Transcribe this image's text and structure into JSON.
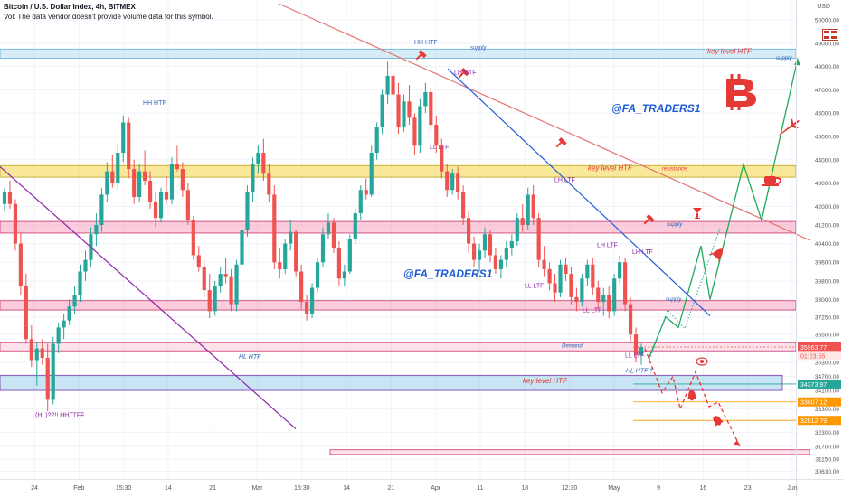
{
  "header": {
    "title": "Bitcoin / U.S. Dollar Index, 4h, BITMEX",
    "vol_note": "Vol: The data vendor doesn't provide volume data for this symbol."
  },
  "currency": "USD",
  "colors": {
    "up": "#26a69a",
    "down": "#ef5350",
    "supply": "#4da8da",
    "key_level": "#f5d547",
    "pink_zone": "#f48fb1",
    "green_path": "#1faa59",
    "red_path": "#e53935",
    "blue_trend": "#1e5bd8",
    "purple_trend": "#8e24aa",
    "pink_trend": "#e57373"
  },
  "icons": [
    "bitcoin-icon",
    "airplane-icon",
    "rocket-icon",
    "coffee-cup-icon",
    "hammer-icon",
    "eye-icon",
    "alarm-bell-icon",
    "flag-icon"
  ],
  "chart_data": {
    "type": "candlestick",
    "title": "Bitcoin / U.S. Dollar Index, 4h, BITMEX",
    "ylim": [
      30300,
      50700
    ],
    "y_ticks": [
      "50000.00",
      "49000.00",
      "48000.00",
      "47000.00",
      "46000.00",
      "45000.00",
      "44000.00",
      "43000.00",
      "42000.00",
      "41200.00",
      "40400.00",
      "39600.00",
      "38800.00",
      "38000.00",
      "37250.00",
      "36500.00",
      "35300.00",
      "34700.00",
      "34100.00",
      "33300.00",
      "32300.00",
      "31700.00",
      "31150.00",
      "30630.00"
    ],
    "x_ticks": [
      "24",
      "Feb",
      "15:30",
      "14",
      "21",
      "Mar",
      "15:30",
      "14",
      "21",
      "Apr",
      "11",
      "18",
      "12:30",
      "May",
      "9",
      "16",
      "23",
      "Jun"
    ],
    "price_labels": [
      {
        "text": "35963.77",
        "value": 35963.77,
        "color": "#ef5350"
      },
      {
        "text": "01:23:55",
        "value": 35600,
        "color": "#ef5350"
      },
      {
        "text": "34373.97",
        "value": 34373.97,
        "color": "#26a69a"
      },
      {
        "text": "33607.12",
        "value": 33607.12,
        "color": "#ff9800"
      },
      {
        "text": "32812.79",
        "value": 32812.79,
        "color": "#ff9800"
      }
    ],
    "zones": [
      {
        "kind": "supply",
        "low": 48350,
        "high": 48750,
        "x_start": 0,
        "x_end": 880
      },
      {
        "kind": "key_level",
        "low": 43250,
        "high": 43750,
        "x_start": 0,
        "x_end": 880
      },
      {
        "kind": "supply_pink",
        "low": 40850,
        "high": 41350,
        "x_start": 0,
        "x_end": 880
      },
      {
        "kind": "supply_pink",
        "low": 37550,
        "high": 37950,
        "x_start": 0,
        "x_end": 880
      },
      {
        "kind": "demand",
        "low": 35800,
        "high": 36150,
        "x_start": 0,
        "x_end": 880
      },
      {
        "kind": "key_level_blue",
        "low": 34100,
        "high": 34750,
        "x_start": 0,
        "x_end": 865
      },
      {
        "kind": "target",
        "low": 31350,
        "high": 31550,
        "x_start": 365,
        "x_end": 895
      }
    ],
    "annotations": [
      {
        "text": "HH HTF",
        "x": 458,
        "value": 48950,
        "color": "#2c5fb5",
        "size": 7
      },
      {
        "text": "supply",
        "x": 520,
        "value": 48750,
        "color": "#2c5fb5",
        "size": 6,
        "italic": true
      },
      {
        "text": "key level HTF",
        "x": 782,
        "value": 48550,
        "color": "#e53935",
        "size": 8,
        "italic": true
      },
      {
        "text": "supply",
        "x": 858,
        "value": 48300,
        "color": "#2c5fb5",
        "size": 6,
        "italic": true
      },
      {
        "text": "LH HTF",
        "x": 502,
        "value": 47650,
        "color": "#8e24aa",
        "size": 7
      },
      {
        "text": "HH HTF",
        "x": 158,
        "value": 46350,
        "color": "#2c5fb5",
        "size": 7
      },
      {
        "text": "@FA_TRADERS1",
        "x": 676,
        "value": 46050,
        "color": "#1e5bd8",
        "size": 12,
        "italic": true,
        "bold": true
      },
      {
        "text": "LL LTF",
        "x": 475,
        "value": 44450,
        "color": "#8e24aa",
        "size": 7
      },
      {
        "text": "key level HTF",
        "x": 650,
        "value": 43550,
        "color": "#e53935",
        "size": 8,
        "italic": true
      },
      {
        "text": "resistance",
        "x": 732,
        "value": 43550,
        "color": "#e53935",
        "size": 6,
        "italic": true
      },
      {
        "text": "LH LTF",
        "x": 613,
        "value": 43050,
        "color": "#8e24aa",
        "size": 7
      },
      {
        "text": "supply",
        "x": 737,
        "value": 41150,
        "color": "#2c5fb5",
        "size": 6,
        "italic": true
      },
      {
        "text": "LH LTF",
        "x": 660,
        "value": 40250,
        "color": "#8e24aa",
        "size": 7
      },
      {
        "text": "LH LTF",
        "x": 699,
        "value": 39950,
        "color": "#8e24aa",
        "size": 7
      },
      {
        "text": "@FA_TRADERS1",
        "x": 446,
        "value": 38950,
        "color": "#1e5bd8",
        "size": 12,
        "italic": true,
        "bold": true
      },
      {
        "text": "LL LTF",
        "x": 580,
        "value": 38500,
        "color": "#8e24aa",
        "size": 7
      },
      {
        "text": "supply",
        "x": 736,
        "value": 37950,
        "color": "#2c5fb5",
        "size": 6,
        "italic": true
      },
      {
        "text": "LL LTF",
        "x": 644,
        "value": 37450,
        "color": "#8e24aa",
        "size": 7
      },
      {
        "text": "Demand",
        "x": 621,
        "value": 35950,
        "color": "#2c5fb5",
        "size": 6,
        "italic": true
      },
      {
        "text": "LL LTF",
        "x": 691,
        "value": 35520,
        "color": "#8e24aa",
        "size": 7
      },
      {
        "text": "HL HTF",
        "x": 264,
        "value": 35450,
        "color": "#2c5fb5",
        "size": 7,
        "italic": true
      },
      {
        "text": "HL HTF ?",
        "x": 692,
        "value": 34850,
        "color": "#2c5fb5",
        "size": 7,
        "italic": true
      },
      {
        "text": "key level HTF",
        "x": 578,
        "value": 34420,
        "color": "#e53935",
        "size": 8,
        "italic": true
      },
      {
        "text": "(HL)??!! HHTTFF",
        "x": 39,
        "value": 32950,
        "color": "#8e24aa",
        "size": 7
      }
    ],
    "trendlines": [
      {
        "name": "pink",
        "points": [
          [
            308,
            50700
          ],
          [
            895,
            40550
          ]
        ]
      },
      {
        "name": "blue",
        "points": [
          [
            495,
            47900
          ],
          [
            785,
            37300
          ]
        ]
      },
      {
        "name": "purple",
        "points": [
          [
            0,
            43700
          ],
          [
            327,
            32450
          ]
        ]
      }
    ],
    "projection_up": [
      [
        717,
        35450
      ],
      [
        736,
        37250
      ],
      [
        750,
        36800
      ],
      [
        775,
        40300
      ],
      [
        785,
        38000
      ],
      [
        822,
        43800
      ],
      [
        842,
        41400
      ],
      [
        882,
        48350
      ]
    ],
    "projection_up_dotted": [
      [
        717,
        35300
      ],
      [
        738,
        37550
      ],
      [
        757,
        36750
      ],
      [
        796,
        41050
      ]
    ],
    "projection_down": [
      [
        713,
        35900
      ],
      [
        732,
        34000
      ],
      [
        744,
        34700
      ],
      [
        752,
        33300
      ],
      [
        769,
        34900
      ],
      [
        784,
        33400
      ],
      [
        794,
        33600
      ],
      [
        818,
        31700
      ]
    ],
    "candles_4h_sampled": [
      [
        42100,
        42800,
        41800,
        42600
      ],
      [
        42600,
        43100,
        41900,
        42100
      ],
      [
        42100,
        42300,
        40100,
        40400
      ],
      [
        40400,
        40900,
        38200,
        38600
      ],
      [
        38600,
        39100,
        36100,
        36300
      ],
      [
        36300,
        36900,
        35100,
        35400
      ],
      [
        35400,
        36200,
        34300,
        35900
      ],
      [
        35900,
        36300,
        35200,
        35500
      ],
      [
        35500,
        36100,
        33200,
        33700
      ],
      [
        33700,
        36400,
        33500,
        36100
      ],
      [
        36100,
        37000,
        35700,
        36800
      ],
      [
        36800,
        37400,
        36300,
        37100
      ],
      [
        37100,
        38000,
        36900,
        37700
      ],
      [
        37700,
        38600,
        37400,
        38200
      ],
      [
        38200,
        39500,
        37900,
        39200
      ],
      [
        39200,
        40100,
        38800,
        39700
      ],
      [
        39700,
        41100,
        39400,
        40800
      ],
      [
        40800,
        41700,
        40300,
        41200
      ],
      [
        41200,
        42800,
        40900,
        42500
      ],
      [
        42500,
        43900,
        42200,
        43500
      ],
      [
        43500,
        44200,
        42800,
        43000
      ],
      [
        43000,
        44700,
        42700,
        44300
      ],
      [
        44300,
        45900,
        43900,
        45600
      ],
      [
        45600,
        45800,
        43200,
        43600
      ],
      [
        43600,
        44000,
        42100,
        42400
      ],
      [
        42400,
        43800,
        42200,
        43500
      ],
      [
        43500,
        44400,
        42900,
        43100
      ],
      [
        43100,
        43500,
        41900,
        42200
      ],
      [
        42200,
        42600,
        41100,
        41500
      ],
      [
        41500,
        42800,
        41300,
        42600
      ],
      [
        42600,
        43300,
        42100,
        42300
      ],
      [
        42300,
        44100,
        42100,
        43800
      ],
      [
        43800,
        44600,
        43500,
        43600
      ],
      [
        43600,
        43900,
        42400,
        42700
      ],
      [
        42700,
        43000,
        41200,
        41400
      ],
      [
        41400,
        41600,
        39700,
        39900
      ],
      [
        39900,
        40300,
        39200,
        39400
      ],
      [
        39400,
        39700,
        38100,
        38400
      ],
      [
        38400,
        39100,
        37200,
        37500
      ],
      [
        37500,
        38800,
        37300,
        38600
      ],
      [
        38600,
        39400,
        38300,
        39100
      ],
      [
        39100,
        39800,
        38700,
        39000
      ],
      [
        39000,
        39300,
        37500,
        37800
      ],
      [
        37800,
        39700,
        37500,
        39500
      ],
      [
        39500,
        41300,
        39300,
        41000
      ],
      [
        41000,
        42900,
        40700,
        42600
      ],
      [
        42600,
        44100,
        42200,
        43800
      ],
      [
        43800,
        44600,
        43400,
        44300
      ],
      [
        44300,
        44900,
        43100,
        43400
      ],
      [
        43400,
        43800,
        42200,
        42500
      ],
      [
        42500,
        42900,
        39300,
        39600
      ],
      [
        39600,
        40200,
        38900,
        39300
      ],
      [
        39300,
        40600,
        39100,
        40400
      ],
      [
        40400,
        41400,
        40100,
        40900
      ],
      [
        40900,
        41000,
        39000,
        39200
      ],
      [
        39200,
        39500,
        37600,
        37900
      ],
      [
        37900,
        38200,
        37100,
        37400
      ],
      [
        37400,
        38700,
        37200,
        38500
      ],
      [
        38500,
        39800,
        38300,
        39600
      ],
      [
        39600,
        41100,
        39400,
        40800
      ],
      [
        40800,
        41700,
        40600,
        41300
      ],
      [
        41300,
        41500,
        40000,
        40200
      ],
      [
        40200,
        40500,
        38600,
        38900
      ],
      [
        38900,
        39500,
        38600,
        39200
      ],
      [
        39200,
        40800,
        39100,
        40600
      ],
      [
        40600,
        41900,
        40400,
        41700
      ],
      [
        41700,
        42900,
        41400,
        42700
      ],
      [
        42700,
        43200,
        42300,
        42500
      ],
      [
        42500,
        44600,
        42400,
        44300
      ],
      [
        44300,
        45600,
        44000,
        45400
      ],
      [
        45400,
        47000,
        45100,
        46800
      ],
      [
        46800,
        48200,
        46400,
        47600
      ],
      [
        47600,
        47900,
        46500,
        46800
      ],
      [
        46800,
        47300,
        45100,
        45400
      ],
      [
        45400,
        46800,
        45200,
        46500
      ],
      [
        46500,
        47200,
        45500,
        45800
      ],
      [
        45800,
        46000,
        44200,
        44600
      ],
      [
        44600,
        46600,
        44300,
        46300
      ],
      [
        46300,
        47300,
        46000,
        46900
      ],
      [
        46900,
        47100,
        45200,
        45500
      ],
      [
        45500,
        45900,
        44300,
        44600
      ],
      [
        44600,
        44900,
        43200,
        43500
      ],
      [
        43500,
        43800,
        42400,
        42700
      ],
      [
        42700,
        43600,
        42500,
        43400
      ],
      [
        43400,
        43700,
        42300,
        42600
      ],
      [
        42600,
        42900,
        41200,
        41500
      ],
      [
        41500,
        41800,
        40000,
        40400
      ],
      [
        40400,
        40700,
        39400,
        39700
      ],
      [
        39700,
        40400,
        39200,
        40100
      ],
      [
        40100,
        41100,
        39800,
        40800
      ],
      [
        40800,
        41000,
        39600,
        39900
      ],
      [
        39900,
        40200,
        39100,
        39300
      ],
      [
        39300,
        39900,
        38900,
        39700
      ],
      [
        39700,
        40500,
        39400,
        40200
      ],
      [
        40200,
        40800,
        39900,
        40500
      ],
      [
        40500,
        41700,
        40300,
        41500
      ],
      [
        41500,
        42100,
        40900,
        41200
      ],
      [
        41200,
        42800,
        41000,
        42500
      ],
      [
        42500,
        42900,
        41200,
        41500
      ],
      [
        41500,
        41700,
        39400,
        39700
      ],
      [
        39700,
        40300,
        39000,
        39300
      ],
      [
        39300,
        39600,
        38400,
        38700
      ],
      [
        38700,
        39100,
        37900,
        38300
      ],
      [
        38300,
        39700,
        38100,
        39500
      ],
      [
        39500,
        39800,
        38800,
        39100
      ],
      [
        39100,
        39400,
        37800,
        38100
      ],
      [
        38100,
        38500,
        37500,
        37900
      ],
      [
        37900,
        39100,
        37700,
        38900
      ],
      [
        38900,
        39700,
        38600,
        39500
      ],
      [
        39500,
        39800,
        38200,
        38500
      ],
      [
        38500,
        38800,
        37600,
        37900
      ],
      [
        37900,
        38500,
        37300,
        38200
      ],
      [
        38200,
        38600,
        37200,
        37500
      ],
      [
        37500,
        39100,
        37300,
        38900
      ],
      [
        38900,
        39900,
        38700,
        39600
      ],
      [
        39600,
        39800,
        37500,
        37800
      ],
      [
        37800,
        38100,
        36200,
        36500
      ],
      [
        36500,
        36800,
        35300,
        35600
      ],
      [
        35600,
        36100,
        35200,
        35960
      ]
    ]
  }
}
